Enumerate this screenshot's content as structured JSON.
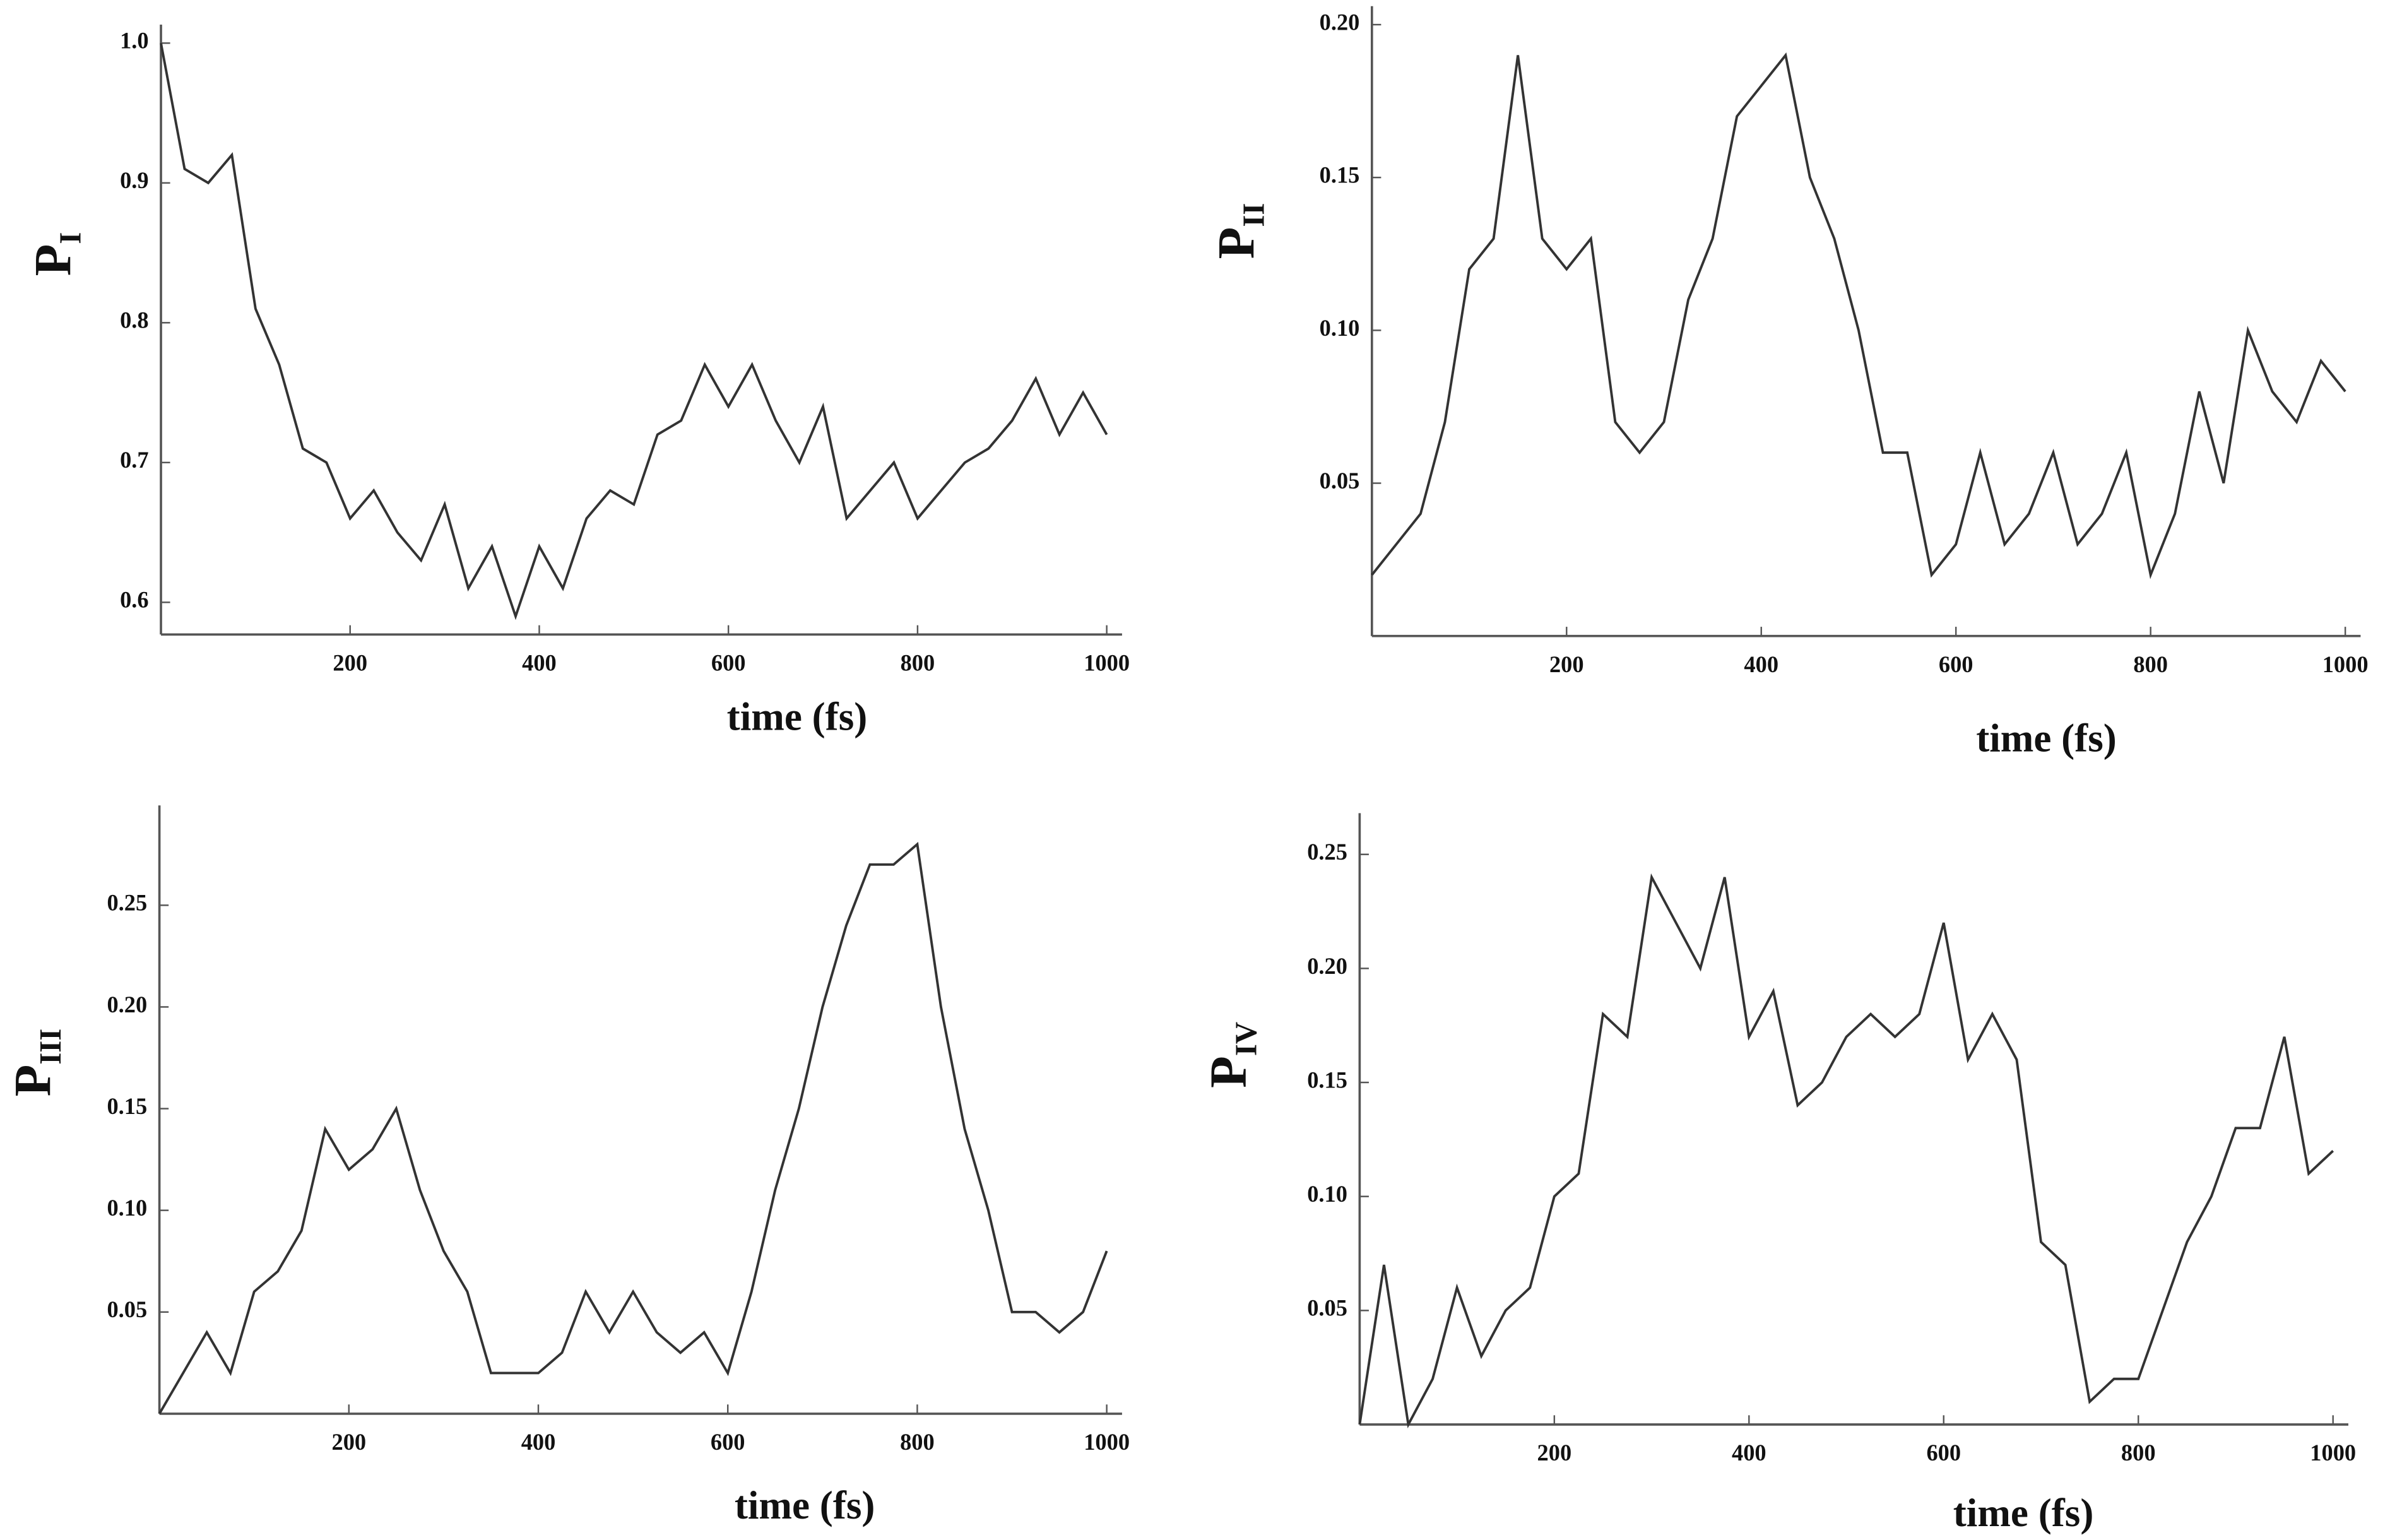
{
  "chart_data": [
    {
      "type": "line",
      "ylabel": "P",
      "ylabel_sub": "I",
      "xlabel": "time (fs)",
      "x": [
        0,
        25,
        50,
        75,
        100,
        125,
        150,
        175,
        200,
        225,
        250,
        275,
        300,
        325,
        350,
        375,
        400,
        425,
        450,
        475,
        500,
        525,
        550,
        575,
        600,
        625,
        650,
        675,
        700,
        725,
        750,
        775,
        800,
        825,
        850,
        875,
        900,
        925,
        950,
        975,
        1000
      ],
      "series": [
        {
          "color": "#333333",
          "values": [
            1.0,
            0.91,
            0.9,
            0.92,
            0.81,
            0.77,
            0.71,
            0.7,
            0.66,
            0.68,
            0.65,
            0.63,
            0.67,
            0.61,
            0.64,
            0.59,
            0.64,
            0.61,
            0.66,
            0.68,
            0.67,
            0.72,
            0.73,
            0.77,
            0.74,
            0.77,
            0.73,
            0.7,
            0.74,
            0.66,
            0.68,
            0.7,
            0.66,
            0.68,
            0.7,
            0.71,
            0.73,
            0.76,
            0.72,
            0.75,
            0.72
          ]
        }
      ],
      "xlim": [
        0,
        1000
      ],
      "xticks": [
        200,
        400,
        600,
        800,
        1000
      ],
      "ylim": [
        0.577,
        1.0
      ],
      "yticks": [
        0.6,
        0.7,
        0.8,
        0.9,
        {
          "value": 1.0,
          "label": "1.0"
        }
      ]
    },
    {
      "type": "line",
      "ylabel": "P",
      "ylabel_sub": "II",
      "xlabel": "time (fs)",
      "x": [
        0,
        25,
        50,
        75,
        100,
        125,
        150,
        175,
        200,
        225,
        250,
        275,
        300,
        325,
        350,
        375,
        400,
        425,
        450,
        475,
        500,
        525,
        550,
        575,
        600,
        625,
        650,
        675,
        700,
        725,
        750,
        775,
        800,
        825,
        850,
        875,
        900,
        925,
        950,
        975,
        1000
      ],
      "series": [
        {
          "color": "#333333",
          "values": [
            0.02,
            0.03,
            0.04,
            0.07,
            0.12,
            0.13,
            0.19,
            0.13,
            0.12,
            0.13,
            0.07,
            0.06,
            0.07,
            0.11,
            0.13,
            0.17,
            0.18,
            0.19,
            0.15,
            0.13,
            0.1,
            0.06,
            0.06,
            0.02,
            0.03,
            0.06,
            0.03,
            0.04,
            0.06,
            0.03,
            0.04,
            0.06,
            0.02,
            0.04,
            0.08,
            0.05,
            0.1,
            0.08,
            0.07,
            0.09,
            0.08
          ]
        }
      ],
      "xlim": [
        0,
        1000
      ],
      "xticks": [
        200,
        400,
        600,
        800,
        1000
      ],
      "ylim": [
        0,
        0.2
      ],
      "yticks": [
        0.05,
        {
          "value": 0.1,
          "label": "0.10"
        },
        0.15,
        {
          "value": 0.2,
          "label": "0.20"
        }
      ]
    },
    {
      "type": "line",
      "ylabel": "P",
      "ylabel_sub": "III",
      "xlabel": "time (fs)",
      "x": [
        0,
        25,
        50,
        75,
        100,
        125,
        150,
        175,
        200,
        225,
        250,
        275,
        300,
        325,
        350,
        375,
        400,
        425,
        450,
        475,
        500,
        525,
        550,
        575,
        600,
        625,
        650,
        675,
        700,
        725,
        750,
        775,
        800,
        825,
        850,
        875,
        900,
        925,
        950,
        975,
        1000
      ],
      "series": [
        {
          "color": "#333333",
          "values": [
            0.0,
            0.02,
            0.04,
            0.02,
            0.06,
            0.07,
            0.09,
            0.14,
            0.12,
            0.13,
            0.15,
            0.11,
            0.08,
            0.06,
            0.02,
            0.02,
            0.02,
            0.03,
            0.06,
            0.04,
            0.06,
            0.04,
            0.03,
            0.04,
            0.02,
            0.06,
            0.11,
            0.15,
            0.2,
            0.24,
            0.27,
            0.27,
            0.28,
            0.2,
            0.14,
            0.1,
            0.05,
            0.05,
            0.04,
            0.05,
            0.08
          ]
        }
      ],
      "xlim": [
        0,
        1000
      ],
      "xticks": [
        200,
        400,
        600,
        800,
        1000
      ],
      "ylim": [
        0,
        0.29
      ],
      "yticks": [
        0.05,
        {
          "value": 0.1,
          "label": "0.10"
        },
        0.15,
        {
          "value": 0.2,
          "label": "0.20"
        },
        0.25
      ]
    },
    {
      "type": "line",
      "ylabel": "P",
      "ylabel_sub": "IV",
      "xlabel": "time (fs)",
      "x": [
        0,
        25,
        50,
        75,
        100,
        125,
        150,
        175,
        200,
        225,
        250,
        275,
        300,
        325,
        350,
        375,
        400,
        425,
        450,
        475,
        500,
        525,
        550,
        575,
        600,
        625,
        650,
        675,
        700,
        725,
        750,
        775,
        800,
        825,
        850,
        875,
        900,
        925,
        950,
        975,
        1000
      ],
      "series": [
        {
          "color": "#333333",
          "values": [
            0.0,
            0.07,
            0.0,
            0.02,
            0.06,
            0.03,
            0.05,
            0.06,
            0.1,
            0.11,
            0.18,
            0.17,
            0.24,
            0.22,
            0.2,
            0.24,
            0.17,
            0.19,
            0.14,
            0.15,
            0.17,
            0.18,
            0.17,
            0.18,
            0.22,
            0.16,
            0.18,
            0.16,
            0.08,
            0.07,
            0.01,
            0.02,
            0.02,
            0.05,
            0.08,
            0.1,
            0.13,
            0.13,
            0.17,
            0.11,
            0.12
          ]
        }
      ],
      "xlim": [
        0,
        1000
      ],
      "xticks": [
        200,
        400,
        600,
        800,
        1000
      ],
      "ylim": [
        0,
        0.26
      ],
      "yticks": [
        0.05,
        {
          "value": 0.1,
          "label": "0.10"
        },
        0.15,
        {
          "value": 0.2,
          "label": "0.20"
        },
        0.25
      ]
    }
  ]
}
